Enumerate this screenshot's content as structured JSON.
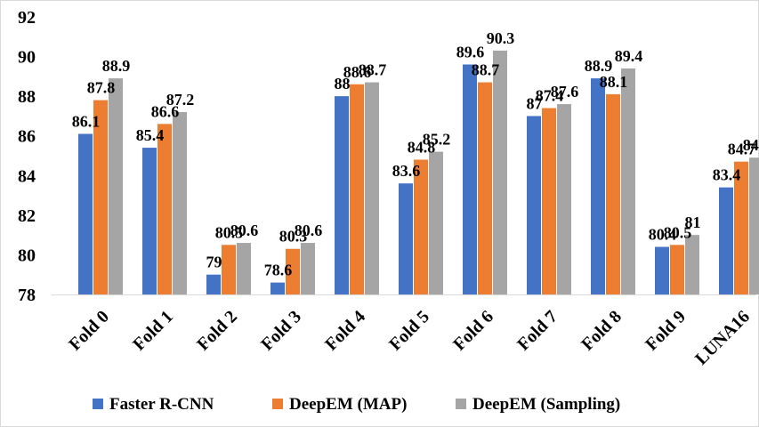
{
  "chart_data": {
    "type": "bar",
    "categories": [
      "Fold 0",
      "Fold 1",
      "Fold 2",
      "Fold 3",
      "Fold 4",
      "Fold 5",
      "Fold 6",
      "Fold 7",
      "Fold 8",
      "Fold 9",
      "LUNA16"
    ],
    "series": [
      {
        "name": "Faster R-CNN",
        "color": "#4472c4",
        "values": [
          86.1,
          85.4,
          79,
          78.6,
          88,
          83.6,
          89.6,
          87,
          88.9,
          80.4,
          83.4
        ]
      },
      {
        "name": "DeepEM (MAP)",
        "color": "#ed7d31",
        "values": [
          87.8,
          86.6,
          80.5,
          80.3,
          88.6,
          84.8,
          88.7,
          87.4,
          88.1,
          80.5,
          84.7
        ]
      },
      {
        "name": "DeepEM (Sampling)",
        "color": "#a5a5a5",
        "values": [
          88.9,
          87.2,
          80.6,
          80.6,
          88.7,
          85.2,
          90.3,
          87.6,
          89.4,
          81,
          84.9
        ]
      }
    ],
    "ylim": [
      78,
      92
    ],
    "yticks": [
      78,
      80,
      82,
      84,
      86,
      88,
      90,
      92
    ],
    "grid": false,
    "legend": "bottom",
    "xlabel": "",
    "ylabel": ""
  }
}
